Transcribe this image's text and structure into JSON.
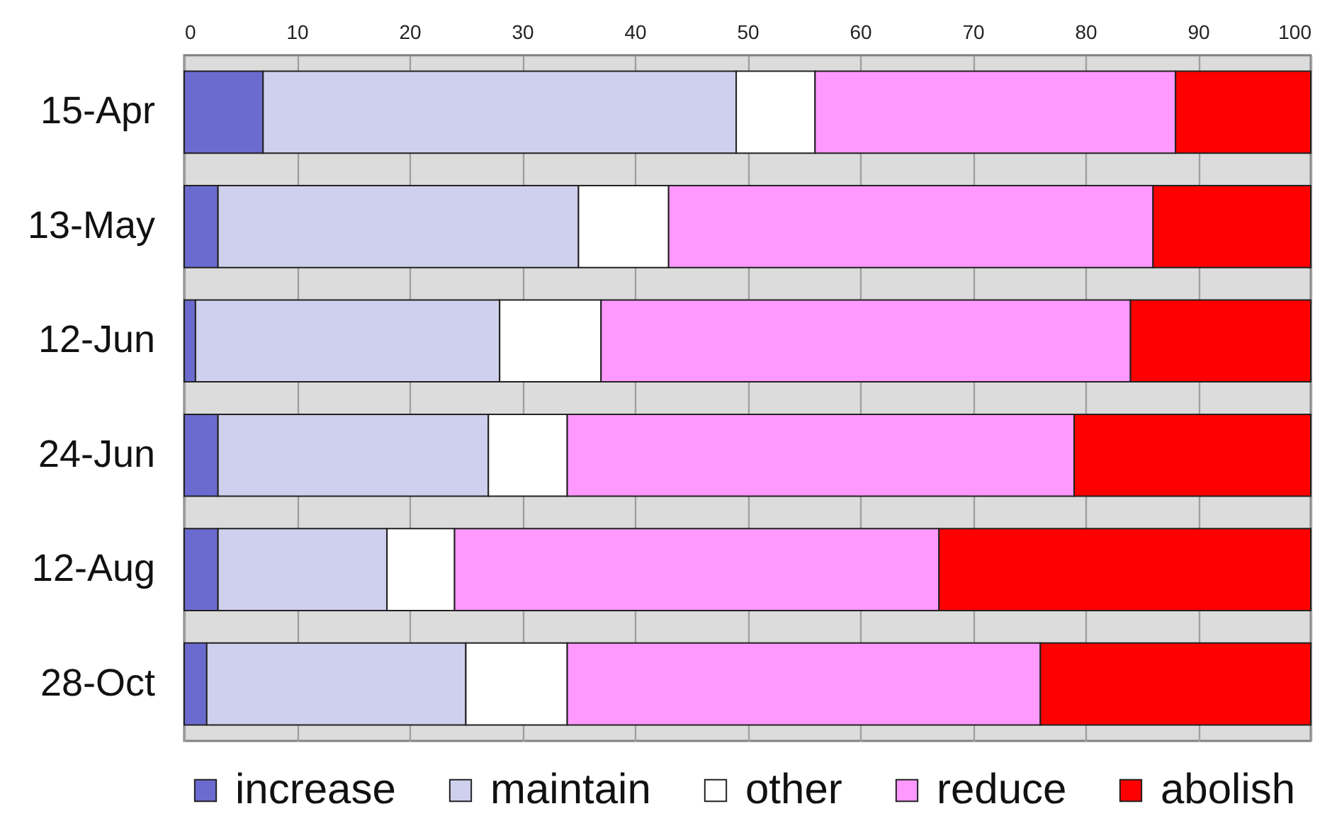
{
  "chart_data": {
    "type": "bar",
    "orientation": "horizontal",
    "stacked": true,
    "categories": [
      "15-Apr",
      "13-May",
      "12-Jun",
      "24-Jun",
      "12-Aug",
      "28-Oct"
    ],
    "series": [
      {
        "name": "increase",
        "color": "#6b6bcf",
        "values": [
          7,
          3,
          1,
          3,
          3,
          2
        ]
      },
      {
        "name": "maintain",
        "color": "#cfcfee",
        "values": [
          42,
          32,
          27,
          24,
          15,
          23
        ]
      },
      {
        "name": "other",
        "color": "#ffffff",
        "values": [
          7,
          8,
          9,
          7,
          6,
          9
        ]
      },
      {
        "name": "reduce",
        "color": "#ff99ff",
        "values": [
          32,
          43,
          47,
          45,
          43,
          42
        ]
      },
      {
        "name": "abolish",
        "color": "#ff0000",
        "values": [
          12,
          14,
          16,
          21,
          33,
          24
        ]
      }
    ],
    "xlim": [
      0,
      100
    ],
    "xticks": [
      0,
      10,
      20,
      30,
      40,
      50,
      60,
      70,
      80,
      90,
      100
    ],
    "grid": "x",
    "legend": "bottom"
  }
}
